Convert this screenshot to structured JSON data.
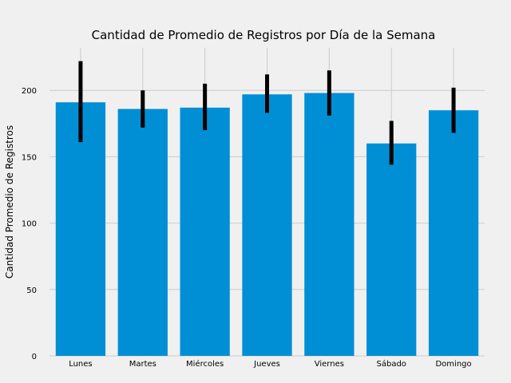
{
  "chart_data": {
    "type": "bar",
    "title": "Cantidad de Promedio de Registros por Día de la Semana",
    "xlabel": "",
    "ylabel": "Cantidad Promedio de Registros",
    "categories": [
      "Lunes",
      "Martes",
      "Miércoles",
      "Jueves",
      "Viernes",
      "Sábado",
      "Domingo"
    ],
    "values": [
      191,
      186,
      187,
      197,
      198,
      160,
      185
    ],
    "error_low": [
      161,
      172,
      170,
      183,
      181,
      144,
      168
    ],
    "error_high": [
      222,
      200,
      205,
      212,
      215,
      177,
      202
    ],
    "ylim": [
      0,
      232
    ],
    "yticks": [
      0,
      50,
      100,
      150,
      200
    ],
    "grid": true,
    "colors": {
      "bar": "#008fd5",
      "error": "#000000",
      "grid": "#cbcbcb",
      "background": "#f0f0f0"
    }
  }
}
